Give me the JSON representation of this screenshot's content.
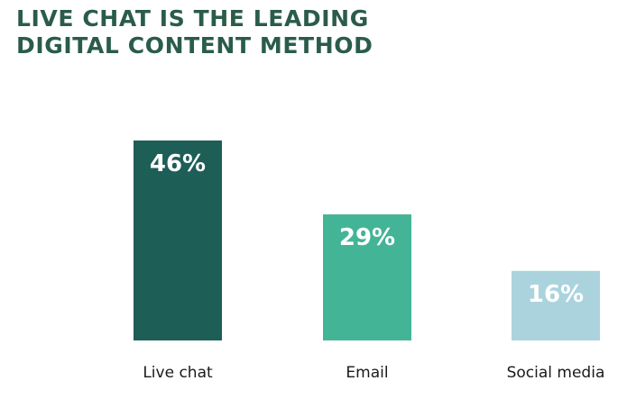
{
  "chart_data": {
    "type": "bar",
    "title_lines": [
      "LIVE CHAT IS THE LEADING",
      "DIGITAL CONTENT METHOD"
    ],
    "categories": [
      "Live chat",
      "Email",
      "Social media"
    ],
    "values": [
      46,
      29,
      16
    ],
    "value_labels": [
      "46%",
      "29%",
      "16%"
    ],
    "colors": [
      "#1d5e56",
      "#44b497",
      "#abd3de"
    ],
    "title_color": "#2a5c49",
    "ylim": [
      0,
      46
    ],
    "grid": false,
    "legend": "none"
  }
}
